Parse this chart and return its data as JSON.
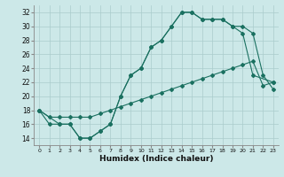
{
  "xlabel": "Humidex (Indice chaleur)",
  "bg_color": "#cce8e8",
  "grid_color": "#aacccc",
  "line_color": "#1a7060",
  "xlim": [
    -0.5,
    23.5
  ],
  "ylim": [
    13,
    33
  ],
  "xticks": [
    0,
    1,
    2,
    3,
    4,
    5,
    6,
    7,
    8,
    9,
    10,
    11,
    12,
    13,
    14,
    15,
    16,
    17,
    18,
    19,
    20,
    21,
    22,
    23
  ],
  "yticks": [
    14,
    16,
    18,
    20,
    22,
    24,
    26,
    28,
    30,
    32
  ],
  "line1_x": [
    0,
    1,
    2,
    3,
    4,
    5,
    6,
    7,
    8,
    9,
    10,
    11,
    12,
    13,
    14,
    15,
    16,
    17,
    18,
    19,
    20,
    21,
    22,
    23
  ],
  "line1_y": [
    18,
    16,
    16,
    16,
    14,
    14,
    15,
    16,
    20,
    23,
    24,
    27,
    28,
    30,
    32,
    32,
    31,
    31,
    31,
    30,
    30,
    29,
    23,
    21
  ],
  "line2_x": [
    0,
    2,
    3,
    4,
    5,
    6,
    7,
    8,
    9,
    10,
    11,
    12,
    13,
    14,
    15,
    16,
    17,
    18,
    19,
    20,
    21,
    23
  ],
  "line2_y": [
    18,
    16,
    16,
    14,
    14,
    15,
    16,
    20,
    23,
    24,
    27,
    28,
    30,
    32,
    32,
    31,
    31,
    31,
    30,
    29,
    23,
    22
  ],
  "line3_x": [
    0,
    1,
    2,
    3,
    4,
    5,
    6,
    7,
    8,
    9,
    10,
    11,
    12,
    13,
    14,
    15,
    16,
    17,
    18,
    19,
    20,
    21,
    22,
    23
  ],
  "line3_y": [
    18,
    17,
    17,
    17,
    17,
    17,
    17.5,
    18,
    18.5,
    19,
    19.5,
    20,
    20.5,
    21,
    21.5,
    22,
    22.5,
    23,
    23.5,
    24,
    24.5,
    25,
    21.5,
    22
  ]
}
